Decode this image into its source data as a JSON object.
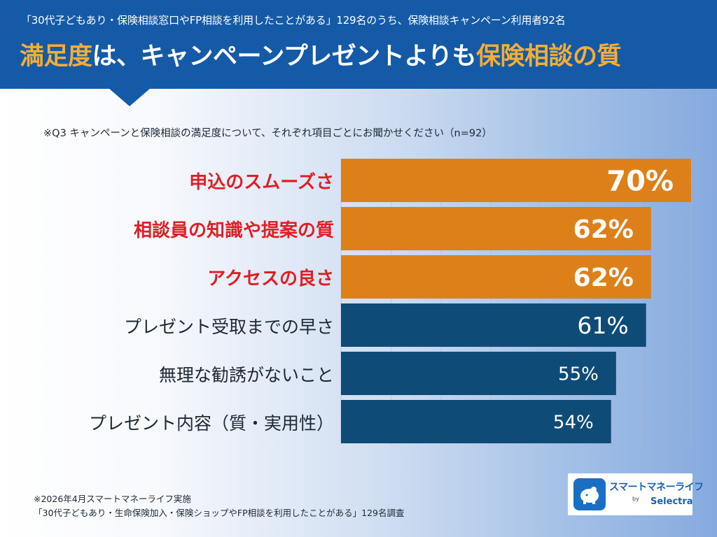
{
  "header": {
    "subtitle": "「30代子どもあり・保険相談窓口やFP相談を利用したことがある」129名のうち、保険相談キャンペーン利用者92名",
    "title_part1": "満足度",
    "title_part2": "は、キャンペーンプレゼントよりも",
    "title_part3": "保険相談の質"
  },
  "question": "※Q3 キャンペーンと保険相談の満足度について、それぞれ項目ごとにお聞かせください（n=92）",
  "footer": {
    "note": "※2026年4月スマートマネーライフ実施\n「30代子どもあり・生命保険加入・保険ショップやFP相談を利用したことがある」129名調査"
  },
  "logo": {
    "name": "スマートマネーライフ",
    "by": "by",
    "sub": "Selectra"
  },
  "colors": {
    "header_bg": "#155aa6",
    "highlight": "#f6ad35",
    "bar_orange": "#de8019",
    "bar_navy": "#0f4b77",
    "label_red": "#e01e26",
    "label_dark": "#1d2833"
  },
  "chart_data": {
    "type": "bar",
    "orientation": "horizontal",
    "unit": "%",
    "categories": [
      "申込のスムーズさ",
      "相談員の知識や提案の質",
      "アクセスの良さ",
      "プレゼント受取までの早さ",
      "無理な勧誘がないこと",
      "プレゼント内容（質・実用性）"
    ],
    "values": [
      70,
      62,
      62,
      61,
      55,
      54
    ],
    "highlighted": [
      true,
      true,
      true,
      false,
      false,
      false
    ],
    "value_labels": [
      "70%",
      "62%",
      "62%",
      "61%",
      "55%",
      "54%"
    ],
    "xlim": [
      0,
      70
    ],
    "grid": true
  }
}
